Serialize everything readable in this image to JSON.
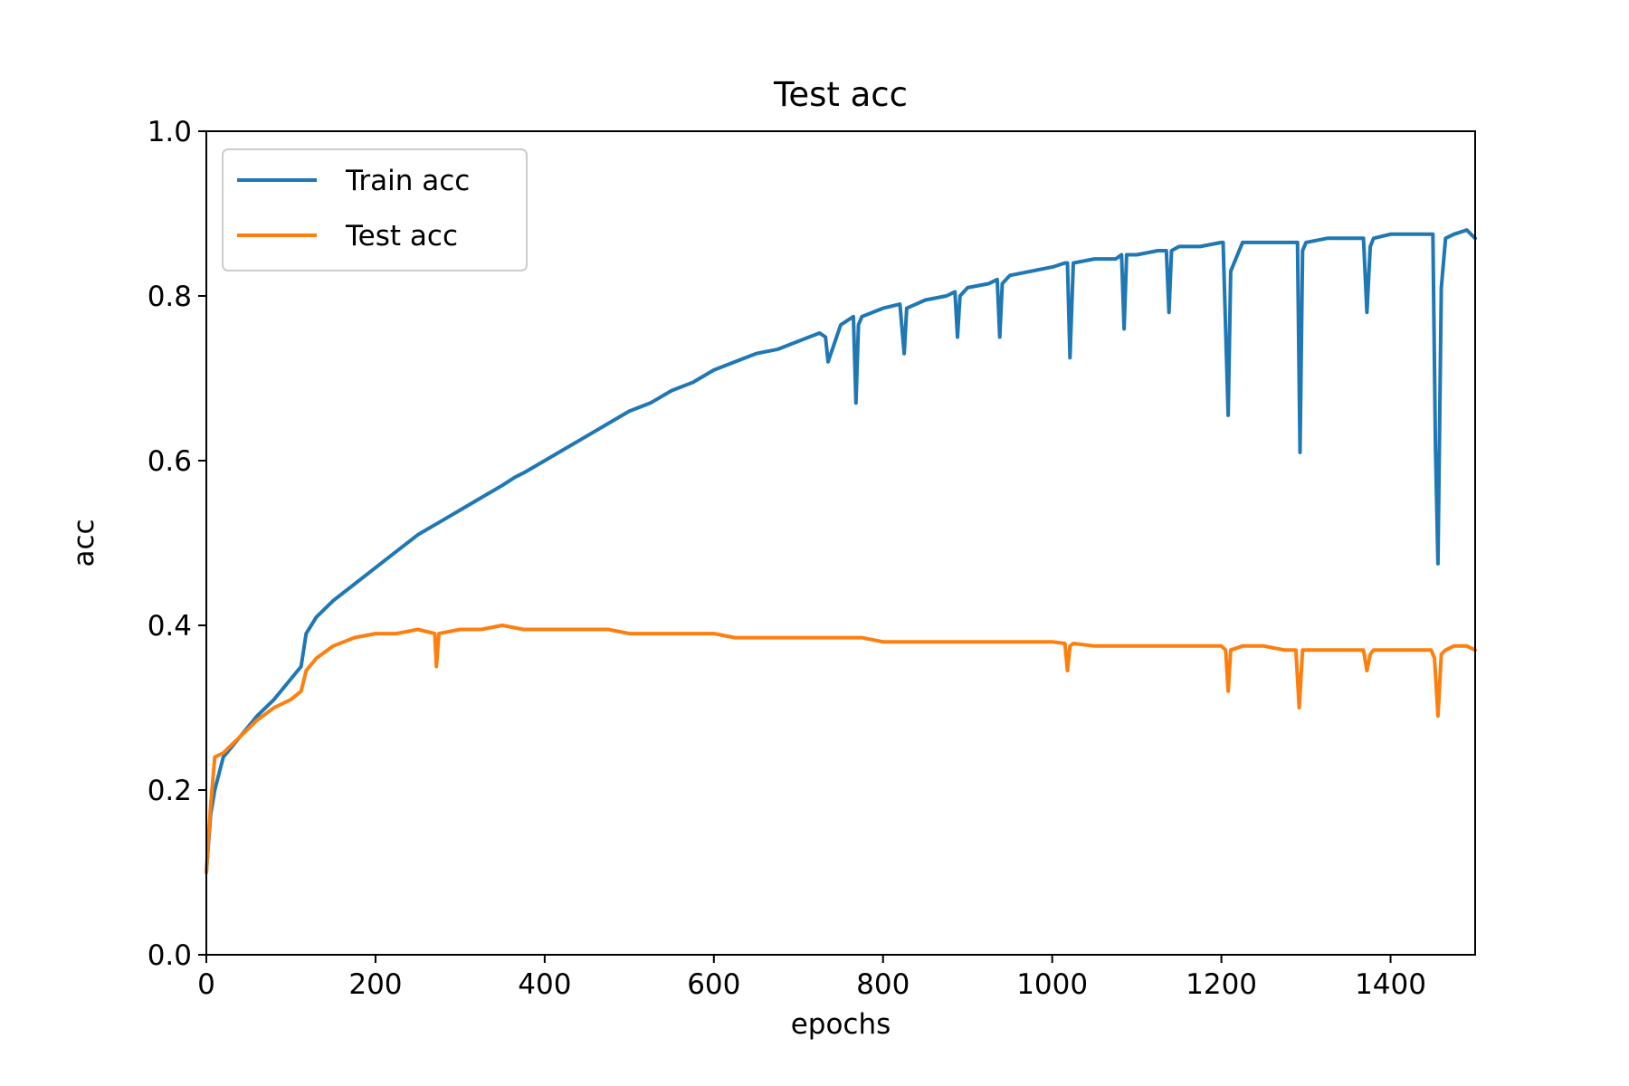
{
  "chart_data": {
    "type": "line",
    "title": "Test acc",
    "xlabel": "epochs",
    "ylabel": "acc",
    "xlim": [
      0,
      1500
    ],
    "ylim": [
      0.0,
      1.0
    ],
    "x_ticks": [
      0,
      200,
      400,
      600,
      800,
      1000,
      1200,
      1400
    ],
    "x_tick_labels": [
      "0",
      "200",
      "400",
      "600",
      "800",
      "1000",
      "1200",
      "1400"
    ],
    "y_ticks": [
      0.0,
      0.2,
      0.4,
      0.6,
      0.8,
      1.0
    ],
    "y_tick_labels": [
      "0.0",
      "0.2",
      "0.4",
      "0.6",
      "0.8",
      "1.0"
    ],
    "grid": false,
    "legend_position": "top-left",
    "series": [
      {
        "name": "Train acc",
        "color": "#1f77b4",
        "x": [
          0,
          5,
          10,
          20,
          40,
          60,
          80,
          100,
          112,
          118,
          130,
          150,
          175,
          200,
          225,
          250,
          275,
          300,
          325,
          350,
          365,
          375,
          400,
          425,
          450,
          475,
          500,
          525,
          550,
          575,
          600,
          625,
          650,
          675,
          700,
          725,
          732,
          735,
          750,
          765,
          768,
          771,
          775,
          800,
          820,
          825,
          828,
          850,
          875,
          885,
          888,
          891,
          900,
          925,
          935,
          938,
          941,
          950,
          975,
          1000,
          1015,
          1018,
          1021,
          1025,
          1050,
          1075,
          1082,
          1085,
          1088,
          1100,
          1125,
          1135,
          1138,
          1141,
          1150,
          1175,
          1200,
          1202,
          1205,
          1208,
          1211,
          1225,
          1250,
          1275,
          1283,
          1290,
          1293,
          1296,
          1300,
          1325,
          1350,
          1368,
          1372,
          1376,
          1380,
          1400,
          1425,
          1440,
          1446,
          1450,
          1453,
          1456,
          1460,
          1465,
          1475,
          1490,
          1500
        ],
        "y": [
          0.1,
          0.17,
          0.2,
          0.24,
          0.265,
          0.29,
          0.31,
          0.335,
          0.35,
          0.39,
          0.41,
          0.43,
          0.45,
          0.47,
          0.49,
          0.51,
          0.525,
          0.54,
          0.555,
          0.57,
          0.58,
          0.585,
          0.6,
          0.615,
          0.63,
          0.645,
          0.66,
          0.67,
          0.685,
          0.695,
          0.71,
          0.72,
          0.73,
          0.735,
          0.745,
          0.755,
          0.75,
          0.72,
          0.765,
          0.775,
          0.67,
          0.765,
          0.775,
          0.785,
          0.79,
          0.73,
          0.785,
          0.795,
          0.8,
          0.805,
          0.75,
          0.8,
          0.81,
          0.815,
          0.82,
          0.75,
          0.815,
          0.825,
          0.83,
          0.835,
          0.84,
          0.84,
          0.725,
          0.84,
          0.845,
          0.845,
          0.85,
          0.76,
          0.85,
          0.85,
          0.855,
          0.855,
          0.78,
          0.855,
          0.86,
          0.86,
          0.865,
          0.865,
          0.76,
          0.655,
          0.83,
          0.865,
          0.865,
          0.865,
          0.865,
          0.865,
          0.61,
          0.855,
          0.865,
          0.87,
          0.87,
          0.87,
          0.78,
          0.86,
          0.87,
          0.875,
          0.875,
          0.875,
          0.875,
          0.875,
          0.62,
          0.475,
          0.81,
          0.87,
          0.875,
          0.88,
          0.87
        ]
      },
      {
        "name": "Test acc",
        "color": "#ff7f0e",
        "x": [
          0,
          5,
          10,
          20,
          40,
          60,
          80,
          100,
          112,
          118,
          130,
          150,
          175,
          200,
          225,
          250,
          270,
          272,
          275,
          300,
          325,
          350,
          375,
          400,
          425,
          450,
          475,
          500,
          525,
          550,
          575,
          600,
          625,
          650,
          675,
          700,
          725,
          750,
          775,
          800,
          825,
          850,
          875,
          900,
          925,
          950,
          975,
          1000,
          1015,
          1018,
          1021,
          1025,
          1050,
          1075,
          1100,
          1125,
          1150,
          1175,
          1200,
          1205,
          1208,
          1211,
          1225,
          1250,
          1275,
          1288,
          1292,
          1296,
          1300,
          1325,
          1350,
          1368,
          1372,
          1376,
          1380,
          1400,
          1425,
          1440,
          1448,
          1452,
          1456,
          1460,
          1465,
          1475,
          1490,
          1500
        ],
        "y": [
          0.1,
          0.18,
          0.24,
          0.245,
          0.265,
          0.285,
          0.3,
          0.31,
          0.32,
          0.345,
          0.36,
          0.375,
          0.385,
          0.39,
          0.39,
          0.395,
          0.39,
          0.35,
          0.39,
          0.395,
          0.395,
          0.4,
          0.395,
          0.395,
          0.395,
          0.395,
          0.395,
          0.39,
          0.39,
          0.39,
          0.39,
          0.39,
          0.385,
          0.385,
          0.385,
          0.385,
          0.385,
          0.385,
          0.385,
          0.38,
          0.38,
          0.38,
          0.38,
          0.38,
          0.38,
          0.38,
          0.38,
          0.38,
          0.378,
          0.345,
          0.375,
          0.378,
          0.375,
          0.375,
          0.375,
          0.375,
          0.375,
          0.375,
          0.375,
          0.37,
          0.32,
          0.37,
          0.375,
          0.375,
          0.37,
          0.37,
          0.3,
          0.37,
          0.37,
          0.37,
          0.37,
          0.37,
          0.345,
          0.365,
          0.37,
          0.37,
          0.37,
          0.37,
          0.37,
          0.36,
          0.29,
          0.365,
          0.37,
          0.375,
          0.375,
          0.37
        ]
      }
    ]
  }
}
